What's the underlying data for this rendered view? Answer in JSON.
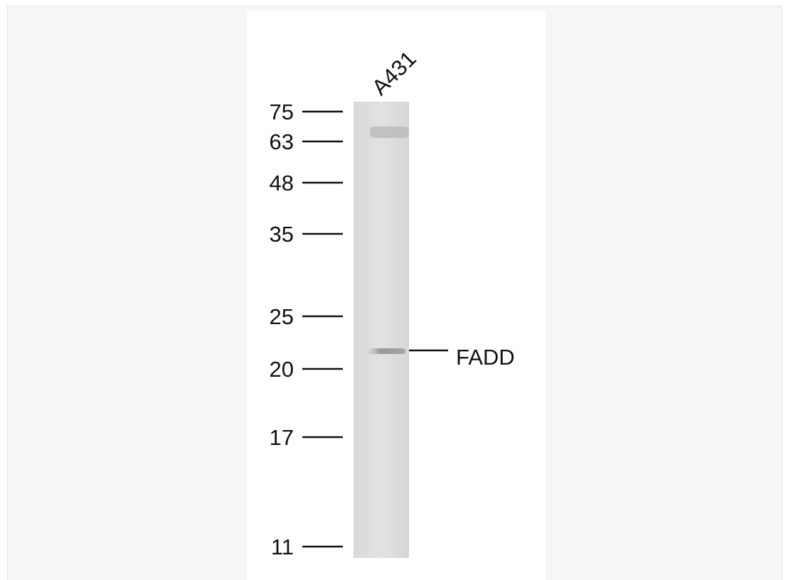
{
  "lane_label": "A431",
  "markers": [
    "75",
    "63",
    "48",
    "35",
    "25",
    "20",
    "17",
    "11"
  ],
  "band_label": "FADD"
}
